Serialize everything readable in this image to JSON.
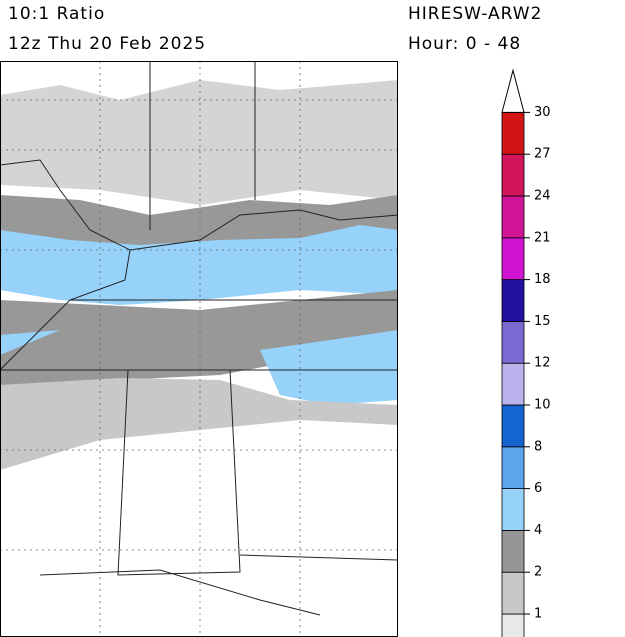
{
  "header": {
    "left_line1": "10:1 Ratio",
    "left_line2": "12z Thu 20 Feb 2025",
    "right_line1": "HIRESW-ARW2",
    "right_line2": "Hour: 0 - 48"
  },
  "colorbar": {
    "labels": [
      1,
      2,
      4,
      6,
      8,
      10,
      12,
      15,
      18,
      21,
      24,
      27,
      30
    ],
    "colors": [
      "#e8e8e8",
      "#c8c8c8",
      "#969696",
      "#96d2fa",
      "#5aa5eb",
      "#1464d2",
      "#b9b2ec",
      "#7a6ad2",
      "#22109e",
      "#d214d2",
      "#d21496",
      "#d2145a",
      "#d21414"
    ]
  }
}
